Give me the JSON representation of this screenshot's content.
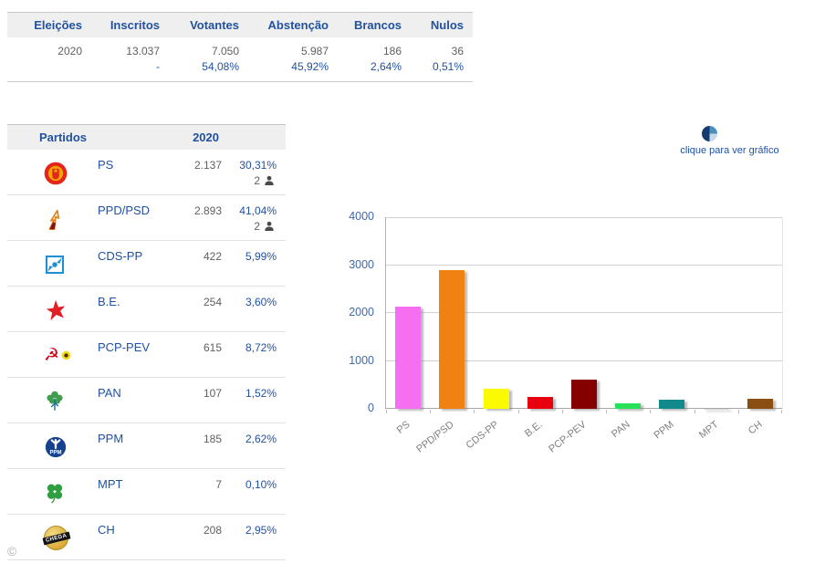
{
  "summary_table": {
    "headers": [
      "Eleições",
      "Inscritos",
      "Votantes",
      "Abstenção",
      "Brancos",
      "Nulos"
    ],
    "values": [
      "2020",
      "13.037",
      "7.050",
      "5.987",
      "186",
      "36"
    ],
    "percents": [
      "",
      "-",
      "54,08%",
      "45,92%",
      "2,64%",
      "0,51%"
    ]
  },
  "party_table": {
    "header_partidos": "Partidos",
    "header_year": "2020",
    "rows": [
      {
        "party": "PS",
        "votes": "2.137",
        "percent": "30,31%",
        "mandates": "2",
        "icon": "ps"
      },
      {
        "party": "PPD/PSD",
        "votes": "2.893",
        "percent": "41,04%",
        "mandates": "2",
        "icon": "psd"
      },
      {
        "party": "CDS-PP",
        "votes": "422",
        "percent": "5,99%",
        "mandates": "",
        "icon": "cds"
      },
      {
        "party": "B.E.",
        "votes": "254",
        "percent": "3,60%",
        "mandates": "",
        "icon": "be"
      },
      {
        "party": "PCP-PEV",
        "votes": "615",
        "percent": "8,72%",
        "mandates": "",
        "icon": "pcp"
      },
      {
        "party": "PAN",
        "votes": "107",
        "percent": "1,52%",
        "mandates": "",
        "icon": "pan"
      },
      {
        "party": "PPM",
        "votes": "185",
        "percent": "2,62%",
        "mandates": "",
        "icon": "ppm"
      },
      {
        "party": "MPT",
        "votes": "7",
        "percent": "0,10%",
        "mandates": "",
        "icon": "mpt"
      },
      {
        "party": "CH",
        "votes": "208",
        "percent": "2,95%",
        "mandates": "",
        "icon": "ch"
      }
    ]
  },
  "chart_link": {
    "label": "clique para ver gráfico"
  },
  "footer": {
    "copyright": "©"
  },
  "theme": {
    "accent_blue": "#2151a1",
    "value_gray": "#5f6062",
    "header_bg": "#efefef"
  },
  "chart_data": {
    "type": "bar",
    "title": "",
    "xlabel": "",
    "ylabel": "",
    "categories": [
      "PS",
      "PPD/PSD",
      "CDS-PP",
      "B.E.",
      "PCP-PEV",
      "PAN",
      "PPM",
      "MPT",
      "CH"
    ],
    "values": [
      2137,
      2893,
      422,
      254,
      615,
      107,
      185,
      7,
      208
    ],
    "colors": [
      "#f570f0",
      "#f08214",
      "#fbfb00",
      "#e8000e",
      "#870000",
      "#27e257",
      "#12898c",
      "#d9d9d9",
      "#8a4f10"
    ],
    "ylim": [
      0,
      4000
    ],
    "yticks": [
      0,
      1000,
      2000,
      3000,
      4000
    ],
    "grid": true,
    "legend": false
  }
}
